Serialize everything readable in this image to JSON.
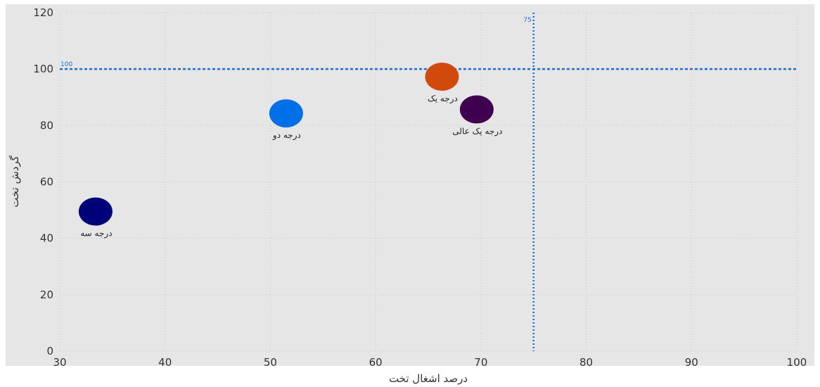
{
  "chart_data": {
    "type": "scatter",
    "xlabel": "درصد اشغال تخت",
    "ylabel": "گردش تخت",
    "xlim": [
      30,
      100
    ],
    "ylim": [
      0,
      120
    ],
    "x_ticks": [
      30,
      40,
      50,
      60,
      70,
      80,
      90,
      100
    ],
    "y_ticks": [
      0,
      20,
      40,
      60,
      80,
      100,
      120
    ],
    "grid": true,
    "points": [
      {
        "label": "درجه سه",
        "x": 33.4,
        "y": 49.5,
        "color": "#000078"
      },
      {
        "label": "درجه دو",
        "x": 51.5,
        "y": 84.3,
        "color": "#0070e8"
      },
      {
        "label": "درجه یک",
        "x": 66.3,
        "y": 97.3,
        "color": "#d04a0c"
      },
      {
        "label": "درجه یک عالی",
        "x": 69.6,
        "y": 85.7,
        "color": "#400052"
      }
    ],
    "reference_lines": [
      {
        "axis": "x",
        "value": 75,
        "label": "75",
        "color": "#1a6ee8"
      },
      {
        "axis": "y",
        "value": 100,
        "label": "100",
        "color": "#1a6ee8"
      }
    ],
    "colors": {
      "plot_background": "#e6e6e6",
      "grid": "#c8c8c8"
    }
  }
}
